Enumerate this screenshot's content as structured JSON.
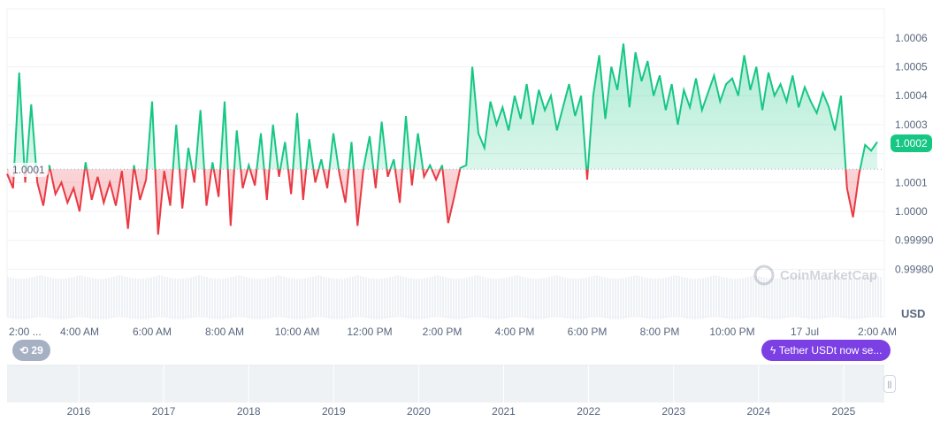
{
  "chart_data": {
    "type": "line",
    "currency_label": "USD",
    "x_start": "2:00 AM",
    "x_interval_minutes": 10,
    "x_ticks": [
      "2:00 ...",
      "4:00 AM",
      "6:00 AM",
      "8:00 AM",
      "10:00 AM",
      "12:00 PM",
      "2:00 PM",
      "4:00 PM",
      "6:00 PM",
      "8:00 PM",
      "10:00 PM",
      "17 Jul",
      "2:00 AM"
    ],
    "y_ticks": [
      1.0006,
      1.0005,
      1.0004,
      1.0003,
      1.0002,
      1.0001,
      1.0,
      0.9999,
      0.9998
    ],
    "y_tick_labels": [
      "1.0006",
      "1.0005",
      "1.0004",
      "1.0003",
      "1.0002",
      "1.0001",
      "1.0000",
      "0.99990",
      "0.99980"
    ],
    "ylim": [
      0.99976,
      1.00071
    ],
    "baseline": 1.000146,
    "baseline_label": "1.0001",
    "current_price_label": "1.0002",
    "colors": {
      "up": "#16c784",
      "down": "#ea3943",
      "badge": "#16c784",
      "news": "#7b3fe4"
    },
    "values": [
      1.00013,
      1.00008,
      1.00048,
      1.0001,
      1.00037,
      1.0001,
      1.00002,
      1.00016,
      1.00006,
      1.0001,
      1.00003,
      1.00008,
      1.0,
      1.00017,
      1.00004,
      1.00012,
      1.00003,
      1.0001,
      1.00002,
      1.00014,
      0.99994,
      1.00016,
      1.00004,
      1.00011,
      1.00038,
      0.99992,
      1.00014,
      1.00002,
      1.0003,
      1.00001,
      1.00022,
      1.0001,
      1.00035,
      1.00002,
      1.00017,
      1.00005,
      1.00038,
      0.99995,
      1.00028,
      1.00008,
      1.00016,
      1.00009,
      1.00027,
      1.00004,
      1.0003,
      1.00012,
      1.00024,
      1.00006,
      1.00034,
      1.00004,
      1.00025,
      1.0001,
      1.00018,
      1.00008,
      1.00027,
      1.00013,
      1.00003,
      1.00024,
      0.99995,
      1.00015,
      1.00026,
      1.00008,
      1.00031,
      1.00012,
      1.00018,
      1.00003,
      1.00033,
      1.00009,
      1.00027,
      1.00012,
      1.00016,
      1.00011,
      1.00016,
      0.99996,
      1.00005,
      1.00015,
      1.00016,
      1.0005,
      1.00027,
      1.00022,
      1.00038,
      1.0003,
      1.00036,
      1.00028,
      1.0004,
      1.00032,
      1.00044,
      1.0003,
      1.00042,
      1.00035,
      1.0004,
      1.00028,
      1.00036,
      1.00044,
      1.00033,
      1.0004,
      1.00011,
      1.0004,
      1.00054,
      1.00032,
      1.0005,
      1.00042,
      1.00058,
      1.00036,
      1.00055,
      1.00045,
      1.00052,
      1.0004,
      1.00047,
      1.00035,
      1.00044,
      1.0003,
      1.00042,
      1.00036,
      1.00046,
      1.00035,
      1.00041,
      1.00047,
      1.00038,
      1.00044,
      1.00046,
      1.0004,
      1.00054,
      1.00042,
      1.0005,
      1.00035,
      1.00048,
      1.0004,
      1.00044,
      1.00038,
      1.00047,
      1.00036,
      1.00043,
      1.00038,
      1.00034,
      1.00041,
      1.00036,
      1.00028,
      1.0004,
      1.00008,
      0.99998,
      1.00013,
      1.00023,
      1.00021,
      1.00024
    ]
  },
  "navigator": {
    "years": [
      "2016",
      "2017",
      "2018",
      "2019",
      "2020",
      "2021",
      "2022",
      "2023",
      "2024",
      "2025"
    ]
  },
  "events_count": "29",
  "news_badge": "Tether USDt now se...",
  "watermark": "CoinMarketCap"
}
